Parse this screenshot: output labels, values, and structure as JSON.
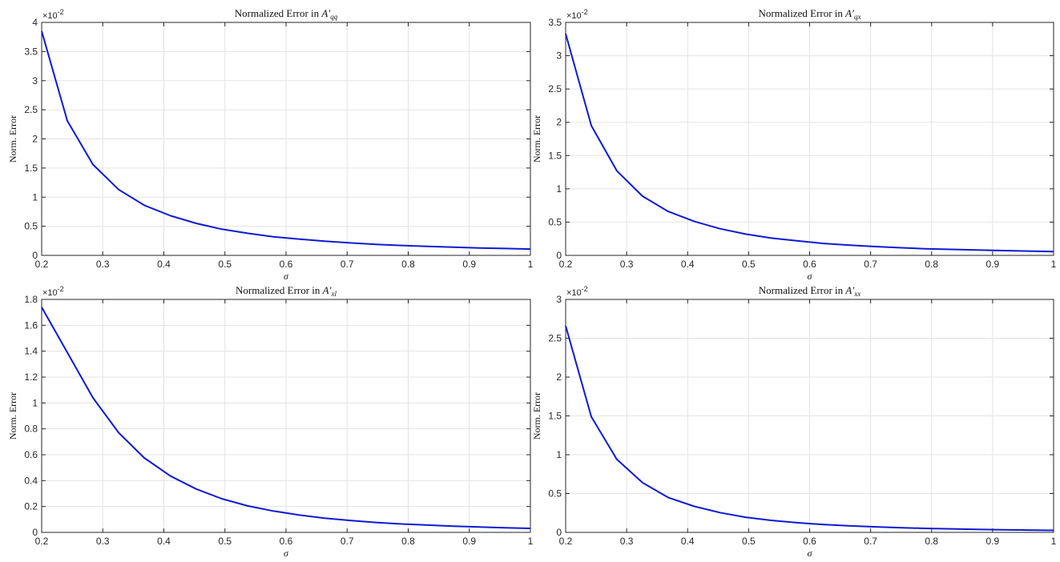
{
  "chart_data": [
    {
      "type": "line",
      "title_prefix": "Normalized Error in ",
      "title_symbol": "A′",
      "title_subscript": "qq",
      "xlabel": "σ",
      "ylabel": "Norm. Error",
      "exponent_label": "×10",
      "exponent_power": "-2",
      "xlim": [
        0.2,
        1
      ],
      "ylim": [
        0,
        4
      ],
      "xticks": [
        "0.2",
        "0.3",
        "0.4",
        "0.5",
        "0.6",
        "0.7",
        "0.8",
        "0.9",
        "1"
      ],
      "yticks": [
        "0",
        "0.5",
        "1",
        "1.5",
        "2",
        "2.5",
        "3",
        "3.5",
        "4"
      ],
      "grid": true,
      "line_color": "#0d1ad4",
      "x": [
        0.2,
        0.242,
        0.284,
        0.326,
        0.368,
        0.411,
        0.453,
        0.495,
        0.537,
        0.579,
        0.621,
        0.663,
        0.705,
        0.747,
        0.789,
        0.832,
        0.874,
        0.916,
        0.958,
        1.0
      ],
      "y": [
        3.85,
        2.31,
        1.56,
        1.13,
        0.86,
        0.68,
        0.55,
        0.45,
        0.38,
        0.32,
        0.28,
        0.245,
        0.215,
        0.19,
        0.17,
        0.155,
        0.14,
        0.128,
        0.118,
        0.108
      ]
    },
    {
      "type": "line",
      "title_prefix": "Normalized Error in ",
      "title_symbol": "A′",
      "title_subscript": "qx",
      "xlabel": "σ",
      "ylabel": "Norm. Error",
      "exponent_label": "×10",
      "exponent_power": "-2",
      "xlim": [
        0.2,
        1
      ],
      "ylim": [
        0,
        3.5
      ],
      "xticks": [
        "0.2",
        "0.3",
        "0.4",
        "0.5",
        "0.6",
        "0.7",
        "0.8",
        "0.9",
        "1"
      ],
      "yticks": [
        "0",
        "0.5",
        "1",
        "1.5",
        "2",
        "2.5",
        "3",
        "3.5"
      ],
      "grid": true,
      "line_color": "#0d1ad4",
      "x": [
        0.2,
        0.242,
        0.284,
        0.326,
        0.368,
        0.411,
        0.453,
        0.495,
        0.537,
        0.579,
        0.621,
        0.663,
        0.705,
        0.747,
        0.789,
        0.832,
        0.874,
        0.916,
        0.958,
        1.0
      ],
      "y": [
        3.33,
        1.95,
        1.27,
        0.89,
        0.66,
        0.51,
        0.4,
        0.32,
        0.26,
        0.22,
        0.18,
        0.155,
        0.133,
        0.115,
        0.1,
        0.09,
        0.08,
        0.072,
        0.065,
        0.058
      ]
    },
    {
      "type": "line",
      "title_prefix": "Normalized Error in ",
      "title_symbol": "A′",
      "title_subscript": "xl",
      "xlabel": "σ",
      "ylabel": "Norm. Error",
      "exponent_label": "×10",
      "exponent_power": "-2",
      "xlim": [
        0.2,
        1
      ],
      "ylim": [
        0,
        1.8
      ],
      "xticks": [
        "0.2",
        "0.3",
        "0.4",
        "0.5",
        "0.6",
        "0.7",
        "0.8",
        "0.9",
        "1"
      ],
      "yticks": [
        "0",
        "0.2",
        "0.4",
        "0.6",
        "0.8",
        "1",
        "1.2",
        "1.4",
        "1.6",
        "1.8"
      ],
      "grid": true,
      "line_color": "#0d1ad4",
      "x": [
        0.2,
        0.242,
        0.284,
        0.326,
        0.368,
        0.411,
        0.453,
        0.495,
        0.537,
        0.579,
        0.621,
        0.663,
        0.705,
        0.747,
        0.789,
        0.832,
        0.874,
        0.916,
        0.958,
        1.0
      ],
      "y": [
        1.74,
        1.39,
        1.04,
        0.77,
        0.575,
        0.435,
        0.335,
        0.26,
        0.205,
        0.165,
        0.135,
        0.11,
        0.092,
        0.077,
        0.065,
        0.056,
        0.048,
        0.042,
        0.036,
        0.031
      ]
    },
    {
      "type": "line",
      "title_prefix": "Normalized Error in ",
      "title_symbol": "A′",
      "title_subscript": "xx",
      "xlabel": "σ",
      "ylabel": "Norm. Error",
      "exponent_label": "×10",
      "exponent_power": "-2",
      "xlim": [
        0.2,
        1
      ],
      "ylim": [
        0,
        3
      ],
      "xticks": [
        "0.2",
        "0.3",
        "0.4",
        "0.5",
        "0.6",
        "0.7",
        "0.8",
        "0.9",
        "1"
      ],
      "yticks": [
        "0",
        "0.5",
        "1",
        "1.5",
        "2",
        "2.5",
        "3"
      ],
      "grid": true,
      "line_color": "#0d1ad4",
      "x": [
        0.2,
        0.242,
        0.284,
        0.326,
        0.368,
        0.411,
        0.453,
        0.495,
        0.537,
        0.579,
        0.621,
        0.663,
        0.705,
        0.747,
        0.789,
        0.832,
        0.874,
        0.916,
        0.958,
        1.0
      ],
      "y": [
        2.66,
        1.49,
        0.94,
        0.64,
        0.45,
        0.335,
        0.255,
        0.195,
        0.155,
        0.125,
        0.102,
        0.085,
        0.072,
        0.061,
        0.052,
        0.045,
        0.039,
        0.034,
        0.03,
        0.026
      ]
    }
  ]
}
